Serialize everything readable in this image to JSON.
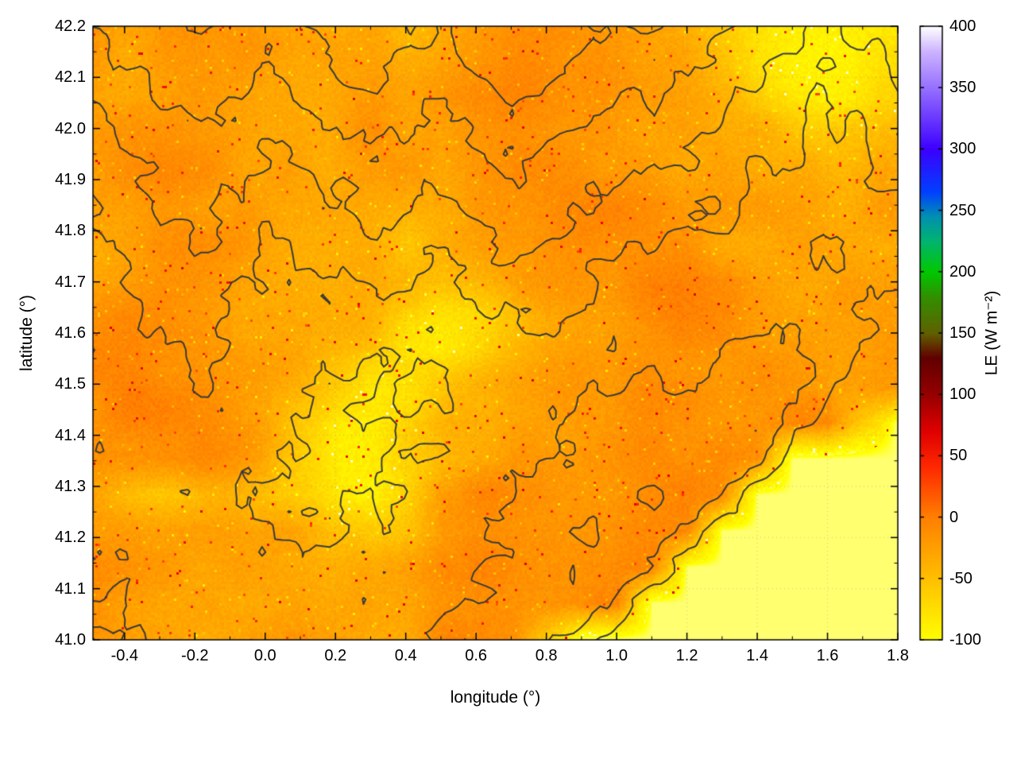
{
  "chart_data": {
    "type": "heatmap",
    "title": "",
    "xlabel": "longitude (°)",
    "ylabel": "latitude (°)",
    "xlim": [
      -0.49,
      1.8
    ],
    "ylim": [
      41.0,
      42.2
    ],
    "grid": true,
    "x_ticks": [
      -0.4,
      -0.2,
      0.0,
      0.2,
      0.4,
      0.6,
      0.8,
      1.0,
      1.2,
      1.4,
      1.6,
      1.8
    ],
    "x_tick_labels": [
      "-0.4",
      "-0.2",
      "0.0",
      "0.2",
      "0.4",
      "0.6",
      "0.8",
      "1.0",
      "1.2",
      "1.4",
      "1.6",
      "1.8"
    ],
    "y_ticks": [
      41.0,
      41.1,
      41.2,
      41.3,
      41.4,
      41.5,
      41.6,
      41.7,
      41.8,
      41.9,
      42.0,
      42.1,
      42.2
    ],
    "y_tick_labels": [
      "41.0",
      "41.1",
      "41.2",
      "41.3",
      "41.4",
      "41.5",
      "41.6",
      "41.7",
      "41.8",
      "41.9",
      "42.0",
      "42.1",
      "42.2"
    ],
    "colorbar": {
      "label": "LE (W m⁻²)",
      "min": -100,
      "max": 400,
      "ticks": [
        -100,
        -50,
        0,
        50,
        100,
        150,
        200,
        250,
        300,
        350,
        400
      ],
      "tick_labels": [
        "-100",
        "-50",
        "0",
        "50",
        "100",
        "150",
        "200",
        "250",
        "300",
        "350",
        "400"
      ],
      "below_range_color": "#ffffd2",
      "palette": [
        [
          -100,
          "#ffff00"
        ],
        [
          -50,
          "#ffbf00"
        ],
        [
          0,
          "#ff7f00"
        ],
        [
          40,
          "#ff2a00"
        ],
        [
          70,
          "#e00000"
        ],
        [
          100,
          "#960000"
        ],
        [
          130,
          "#600000"
        ],
        [
          150,
          "#606000"
        ],
        [
          180,
          "#309000"
        ],
        [
          200,
          "#00c800"
        ],
        [
          225,
          "#00b470"
        ],
        [
          245,
          "#0090b0"
        ],
        [
          265,
          "#0040ff"
        ],
        [
          300,
          "#3c00ff"
        ],
        [
          350,
          "#9670ff"
        ],
        [
          380,
          "#cdb4ff"
        ],
        [
          400,
          "#ffffff"
        ]
      ]
    },
    "le_grid": [
      [
        -20,
        -25,
        -18,
        -12,
        -18,
        -25,
        -30,
        -35,
        -25,
        -45,
        -30,
        -20,
        -12,
        -10,
        -15,
        -20,
        -30,
        -40,
        -60,
        -80,
        -88,
        -90,
        -88,
        -85
      ],
      [
        -25,
        -30,
        -20,
        -15,
        -20,
        -28,
        -35,
        -30,
        -22,
        -30,
        -25,
        -15,
        -8,
        -8,
        -12,
        -18,
        -25,
        -35,
        -55,
        -78,
        -88,
        -90,
        -86,
        -80
      ],
      [
        -30,
        -28,
        -22,
        -18,
        -25,
        -30,
        -32,
        -28,
        -20,
        -25,
        -20,
        -10,
        -5,
        -8,
        -15,
        -20,
        -22,
        -30,
        -40,
        -55,
        -75,
        -85,
        -80,
        -70
      ],
      [
        -22,
        -18,
        -15,
        -18,
        -25,
        -30,
        -28,
        -25,
        -18,
        -22,
        -25,
        -15,
        -10,
        -12,
        -18,
        -25,
        -28,
        -30,
        -35,
        -40,
        -50,
        -55,
        -50,
        -45
      ],
      [
        -20,
        -12,
        -12,
        -15,
        -22,
        -28,
        -30,
        -28,
        -22,
        -25,
        -28,
        -20,
        -15,
        -15,
        -20,
        -25,
        -30,
        -28,
        -30,
        -32,
        -35,
        -38,
        -36,
        -34
      ],
      [
        -25,
        -20,
        -15,
        -18,
        -25,
        -30,
        -28,
        -25,
        -28,
        -35,
        -30,
        -22,
        -18,
        -15,
        -12,
        -8,
        -10,
        -18,
        -25,
        -28,
        -30,
        -32,
        -30,
        -28
      ],
      [
        -28,
        -22,
        -12,
        -10,
        -15,
        -25,
        -30,
        -32,
        -40,
        -55,
        -40,
        -28,
        -20,
        -15,
        -12,
        -10,
        -12,
        -20,
        -28,
        -30,
        -28,
        -30,
        -32,
        -30
      ],
      [
        -30,
        -25,
        -18,
        -15,
        -20,
        -28,
        -32,
        -35,
        -38,
        -45,
        -50,
        -40,
        -30,
        -22,
        -18,
        -15,
        -8,
        -8,
        -15,
        -25,
        -28,
        -30,
        -28,
        -26
      ],
      [
        -10,
        -8,
        -12,
        -20,
        -25,
        -28,
        -30,
        -35,
        -45,
        -60,
        -75,
        -70,
        -50,
        -30,
        -22,
        -18,
        -8,
        -6,
        -12,
        -18,
        -25,
        -28,
        -26,
        -24
      ],
      [
        -8,
        -5,
        -8,
        -15,
        -22,
        -28,
        -32,
        -40,
        -55,
        -80,
        -85,
        -70,
        -45,
        -30,
        -22,
        -18,
        -15,
        -12,
        -15,
        -20,
        -25,
        -28,
        -25,
        -22
      ],
      [
        -10,
        -5,
        -6,
        -12,
        -20,
        -28,
        -40,
        -60,
        -80,
        -80,
        -60,
        -40,
        -30,
        -25,
        -20,
        -18,
        -12,
        -10,
        -12,
        -18,
        -25,
        -28,
        -26,
        -22
      ],
      [
        -12,
        -8,
        -6,
        -10,
        -18,
        -30,
        -55,
        -85,
        -85,
        -65,
        -45,
        -35,
        -30,
        -28,
        -25,
        -20,
        -15,
        -12,
        -15,
        -20,
        -10,
        -8,
        -60,
        -108
      ],
      [
        -15,
        -10,
        -8,
        -12,
        -20,
        -35,
        -60,
        -85,
        -80,
        -70,
        -50,
        -35,
        -25,
        -20,
        -18,
        -15,
        -12,
        -10,
        -8,
        -15,
        -108,
        -108,
        -108,
        -108
      ],
      [
        -25,
        -45,
        -55,
        -50,
        -45,
        -50,
        -60,
        -80,
        -85,
        -60,
        -20,
        -10,
        -10,
        -15,
        -18,
        -15,
        -10,
        -8,
        -8,
        -108,
        -108,
        -108,
        -108,
        -108
      ],
      [
        -20,
        -25,
        -30,
        -25,
        -20,
        -25,
        -35,
        -50,
        -60,
        -55,
        -25,
        -10,
        -8,
        -10,
        -15,
        -12,
        -8,
        -8,
        -108,
        -108,
        -108,
        -108,
        -108,
        -108
      ],
      [
        -12,
        -15,
        -22,
        -28,
        -25,
        -28,
        -30,
        -35,
        -40,
        -30,
        -15,
        -8,
        -10,
        -12,
        -10,
        -8,
        -10,
        -108,
        -108,
        -108,
        -108,
        -108,
        -108,
        -108
      ],
      [
        -18,
        -20,
        -25,
        -28,
        -30,
        -28,
        -25,
        -28,
        -35,
        -25,
        -12,
        -8,
        -10,
        -12,
        -10,
        -8,
        -108,
        -108,
        -108,
        -108,
        -108,
        -108,
        -108,
        -108
      ],
      [
        -22,
        -25,
        -28,
        -30,
        -28,
        -25,
        -22,
        -28,
        -35,
        -30,
        -10,
        -5,
        -8,
        -60,
        -108,
        -108,
        -108,
        -108,
        -108,
        -108,
        -108,
        -108,
        -108,
        -108
      ]
    ],
    "contours": {
      "color": "#3a3a3a",
      "levels": [
        250,
        450,
        650,
        900,
        1150
      ],
      "elevation_grid": [
        [
          900,
          1000,
          1100,
          1200,
          1100,
          1000,
          1100,
          1300,
          1400,
          1200,
          1100,
          1300,
          1500,
          1400,
          1200,
          1100,
          1200,
          1000,
          900,
          800,
          700,
          600,
          700,
          800
        ],
        [
          800,
          900,
          1000,
          1100,
          1000,
          900,
          1000,
          1200,
          1300,
          1100,
          1000,
          1200,
          1400,
          1300,
          1100,
          1000,
          1100,
          900,
          800,
          700,
          600,
          500,
          600,
          700
        ],
        [
          700,
          800,
          900,
          1000,
          900,
          800,
          900,
          1000,
          1100,
          1000,
          900,
          1000,
          1200,
          1100,
          1000,
          900,
          900,
          800,
          700,
          600,
          500,
          450,
          500,
          600
        ],
        [
          600,
          700,
          800,
          850,
          800,
          700,
          750,
          850,
          950,
          900,
          800,
          900,
          1000,
          950,
          850,
          800,
          750,
          700,
          600,
          500,
          450,
          400,
          450,
          500
        ],
        [
          500,
          600,
          700,
          750,
          700,
          600,
          650,
          700,
          800,
          750,
          700,
          800,
          900,
          850,
          750,
          700,
          650,
          600,
          500,
          450,
          400,
          350,
          400,
          450
        ],
        [
          450,
          550,
          650,
          700,
          600,
          500,
          550,
          600,
          700,
          650,
          600,
          700,
          800,
          750,
          650,
          600,
          550,
          500,
          450,
          400,
          350,
          300,
          350,
          400
        ],
        [
          400,
          500,
          600,
          650,
          550,
          450,
          500,
          550,
          600,
          550,
          500,
          600,
          700,
          650,
          550,
          500,
          450,
          400,
          400,
          350,
          300,
          280,
          300,
          350
        ],
        [
          350,
          450,
          550,
          600,
          500,
          400,
          420,
          450,
          500,
          450,
          400,
          500,
          600,
          550,
          480,
          420,
          380,
          350,
          380,
          400,
          350,
          300,
          280,
          300
        ],
        [
          300,
          400,
          500,
          550,
          450,
          350,
          350,
          380,
          400,
          350,
          320,
          400,
          500,
          450,
          400,
          380,
          350,
          320,
          400,
          450,
          400,
          350,
          250,
          200
        ],
        [
          280,
          350,
          450,
          500,
          400,
          300,
          300,
          320,
          300,
          280,
          260,
          320,
          420,
          400,
          380,
          400,
          420,
          380,
          450,
          500,
          450,
          400,
          200,
          100
        ],
        [
          300,
          320,
          400,
          450,
          380,
          300,
          280,
          260,
          250,
          240,
          250,
          300,
          380,
          400,
          420,
          450,
          480,
          450,
          500,
          550,
          500,
          300,
          150,
          50
        ],
        [
          350,
          300,
          350,
          400,
          350,
          320,
          260,
          220,
          230,
          250,
          280,
          320,
          400,
          450,
          480,
          520,
          550,
          500,
          550,
          600,
          400,
          200,
          50,
          0
        ],
        [
          400,
          350,
          300,
          350,
          320,
          300,
          250,
          200,
          220,
          260,
          300,
          350,
          420,
          480,
          520,
          560,
          600,
          550,
          600,
          500,
          100,
          0,
          0,
          0
        ],
        [
          350,
          400,
          350,
          300,
          280,
          260,
          240,
          210,
          230,
          280,
          330,
          400,
          450,
          520,
          560,
          600,
          650,
          600,
          400,
          100,
          0,
          0,
          0,
          0
        ],
        [
          300,
          350,
          400,
          350,
          300,
          280,
          260,
          240,
          260,
          300,
          360,
          420,
          480,
          550,
          600,
          650,
          600,
          400,
          100,
          0,
          0,
          0,
          0,
          0
        ],
        [
          280,
          300,
          350,
          400,
          350,
          320,
          300,
          280,
          300,
          330,
          380,
          450,
          520,
          580,
          620,
          580,
          400,
          100,
          0,
          0,
          0,
          0,
          0,
          0
        ],
        [
          260,
          280,
          320,
          360,
          380,
          350,
          320,
          300,
          320,
          360,
          400,
          480,
          550,
          600,
          580,
          400,
          100,
          0,
          0,
          0,
          0,
          0,
          0,
          0
        ],
        [
          240,
          260,
          300,
          340,
          360,
          340,
          320,
          310,
          340,
          380,
          420,
          500,
          560,
          500,
          300,
          100,
          0,
          0,
          0,
          0,
          0,
          0,
          0,
          0
        ]
      ]
    }
  }
}
